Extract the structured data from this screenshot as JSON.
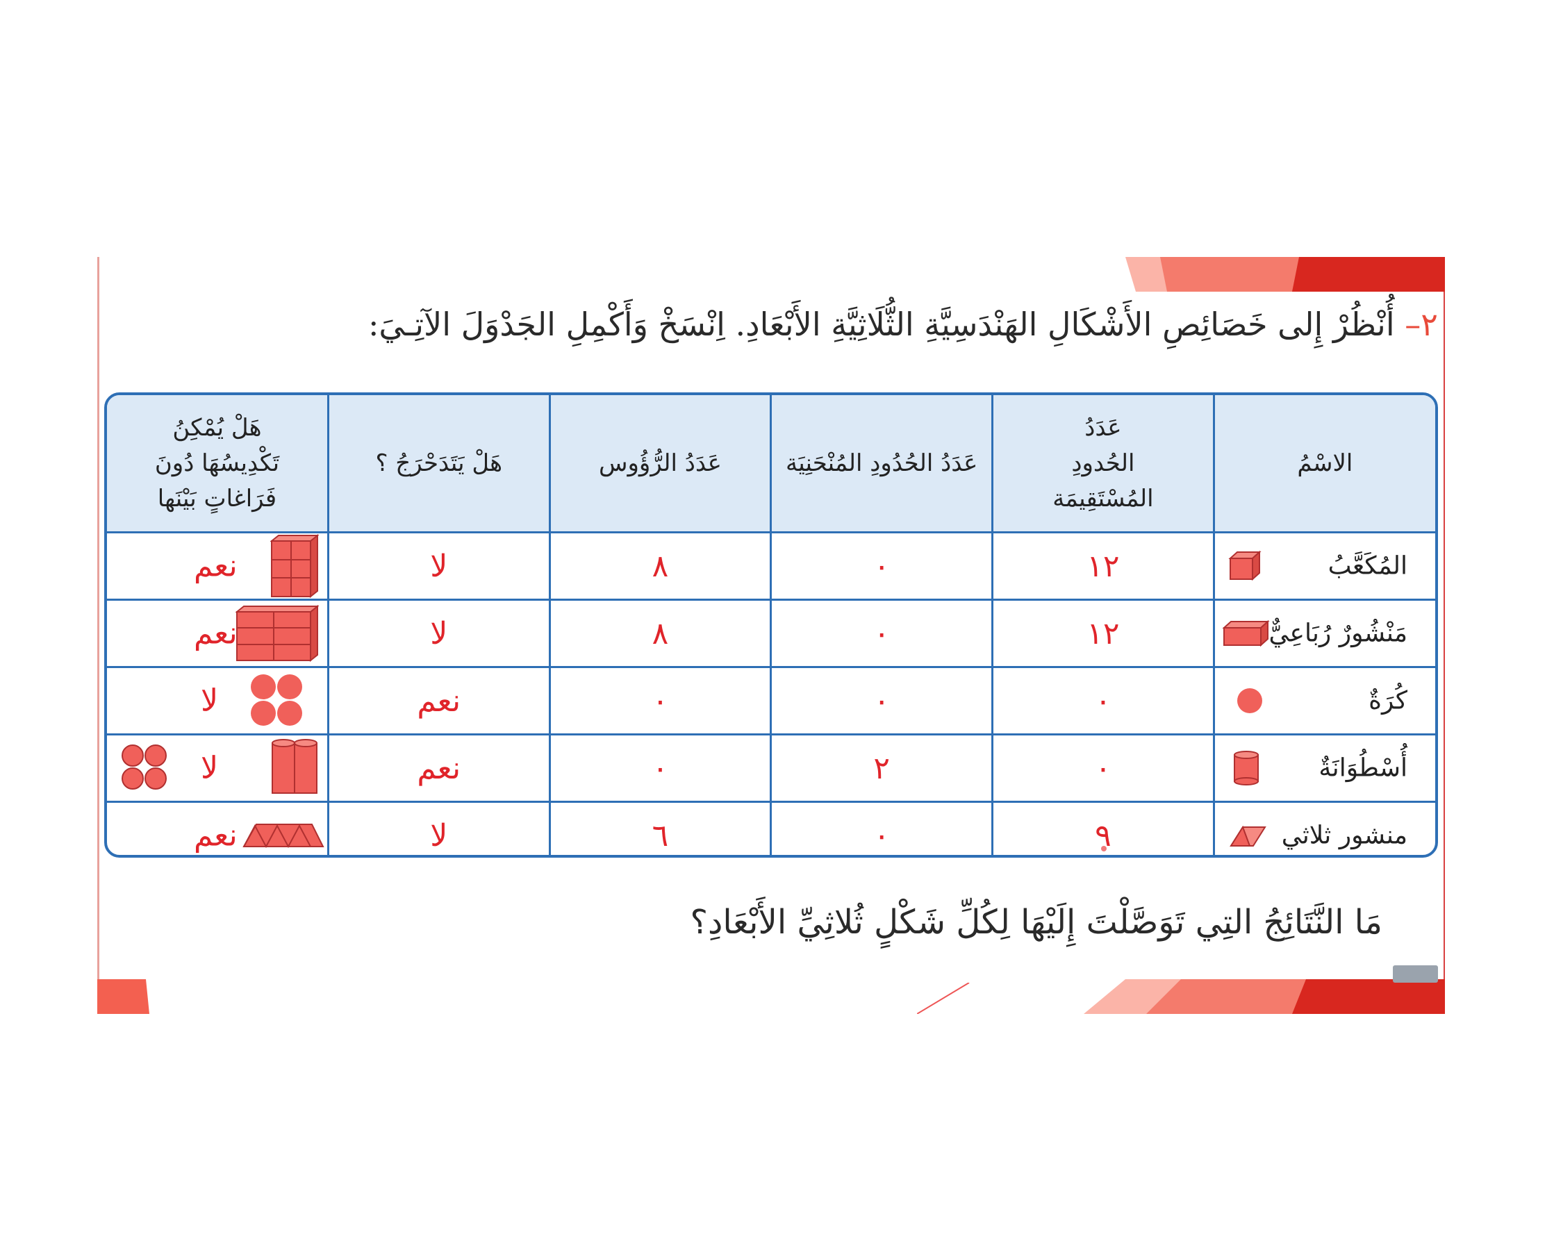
{
  "title": {
    "number": "٢–",
    "text": "أُنْظُرْ إِلى خَصَائِصِ الأَشْكَالِ الهَنْدَسِيَّةِ الثُّلَاثِيَّةِ الأَبْعَادِ. اِنْسَخْ وَأَكْمِلِ الجَدْوَلَ الآتِـيَ:"
  },
  "table": {
    "headers": {
      "name": "الاسْمُ",
      "straight_edges": "عَدَدُ الحُدودِ المُسْتَقِيمَة",
      "curved_edges": "عَدَدُ الحُدُودِ المُنْحَنِيَة",
      "vertices": "عَدَدُ الرُّؤُوس",
      "rolls": "هَلْ يَتَدَحْرَجُ ؟",
      "stack": "هَلْ يُمْكِنُ تَكْدِيسُهَا دُونَ فَرَاغاتٍ بَيْنَها"
    },
    "rows": [
      {
        "name": "المُكَعَّبُ",
        "straight": "١٢",
        "curved": "٠",
        "vertices": "٨",
        "rolls": "لا",
        "stack": "نعم",
        "icon": "cube-icon"
      },
      {
        "name": "مَنْشُورٌ رُبَاعِيٌّ",
        "straight": "١٢",
        "curved": "٠",
        "vertices": "٨",
        "rolls": "لا",
        "stack": "نعم",
        "icon": "rectangular-prism-icon"
      },
      {
        "name": "كُرَةٌ",
        "straight": "٠",
        "curved": "٠",
        "vertices": "٠",
        "rolls": "نعم",
        "stack": "لا",
        "icon": "sphere-icon"
      },
      {
        "name": "أُسْطُوَانَةٌ",
        "straight": "٠",
        "curved": "٢",
        "vertices": "٠",
        "rolls": "نعم",
        "stack": "لا",
        "icon": "cylinder-icon"
      },
      {
        "name": "منشور ثلاثي",
        "straight": "٩",
        "curved": "٠",
        "vertices": "٦",
        "rolls": "لا",
        "stack": "نعم",
        "icon": "triangular-prism-icon"
      }
    ]
  },
  "question": "مَا النَّتَائِجُ التِي تَوَصَّلْتَ إِلَيْهَا لِكُلِّ شَكْلٍ ثُلاثِيِّ الأَبْعَادِ؟",
  "colors": {
    "accent": "#e0242a",
    "border": "#2e6fb5",
    "header_bg": "#dce9f6",
    "shape_fill": "#f0605a"
  }
}
